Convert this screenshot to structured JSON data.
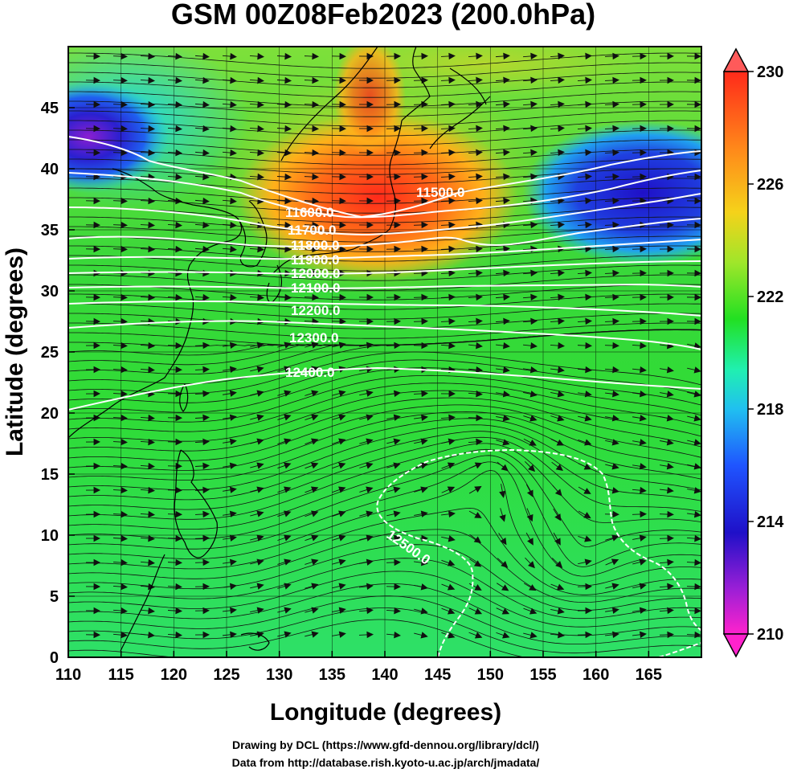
{
  "title": "GSM 00Z08Feb2023 (200.0hPa)",
  "xlabel": "Longitude (degrees)",
  "ylabel": "Latitude  (degrees)",
  "footer": {
    "line1": "Drawing by DCL (https://www.gfd-dennou.org/library/dcl/)",
    "line2": "Data from http://database.rish.kyoto-u.ac.jp/arch/jmadata/"
  },
  "map": {
    "lon_range": [
      110,
      170
    ],
    "lat_range": [
      0,
      50
    ],
    "lon_ticks": [
      "110",
      "115",
      "120",
      "125",
      "130",
      "135",
      "140",
      "145",
      "150",
      "155",
      "160",
      "165"
    ],
    "lat_ticks": [
      "0",
      "5",
      "10",
      "15",
      "20",
      "25",
      "30",
      "35",
      "40",
      "45"
    ],
    "contour_labels": [
      "11500.0",
      "11600.0",
      "11700.0",
      "11800.0",
      "11900.0",
      "12000.0",
      "12100.0",
      "12200.0",
      "12300.0",
      "12400.0",
      "12500.0"
    ]
  },
  "colorbar": {
    "ticks": [
      "210",
      "214",
      "218",
      "222",
      "226",
      "230"
    ],
    "range": [
      210,
      230
    ],
    "colors": [
      "#ff22cc",
      "#9b1fd6",
      "#1f10c8",
      "#1f55ff",
      "#20c0f0",
      "#20f0b0",
      "#22e022",
      "#9fe62a",
      "#f5d21a",
      "#ff8a1a",
      "#ff2a1a"
    ]
  },
  "chart_data": {
    "type": "heatmap",
    "title": "GSM 00Z08Feb2023 (200.0hPa)",
    "xlabel": "Longitude (degrees)",
    "ylabel": "Latitude  (degrees)",
    "xlim": [
      110,
      170
    ],
    "ylim": [
      0,
      50
    ],
    "zlim": [
      210,
      230
    ],
    "contours": [
      {
        "label": "11500.0",
        "lon": 145,
        "lat": 39.5
      },
      {
        "label": "11600.0",
        "lon": 134,
        "lat": 37
      },
      {
        "label": "11700.0",
        "lon": 134.5,
        "lat": 35.5
      },
      {
        "label": "11800.0",
        "lon": 135,
        "lat": 34.2
      },
      {
        "label": "11900.0",
        "lon": 135,
        "lat": 33
      },
      {
        "label": "12000.0",
        "lon": 135,
        "lat": 31.8
      },
      {
        "label": "12100.0",
        "lon": 135,
        "lat": 30.8
      },
      {
        "label": "12200.0",
        "lon": 135,
        "lat": 29.5
      },
      {
        "label": "12300.0",
        "lon": 135,
        "lat": 26.8
      },
      {
        "label": "12400.0",
        "lon": 135,
        "lat": 23.8
      },
      {
        "label": "12500.0",
        "lon": 143,
        "lat": 8
      }
    ]
  }
}
